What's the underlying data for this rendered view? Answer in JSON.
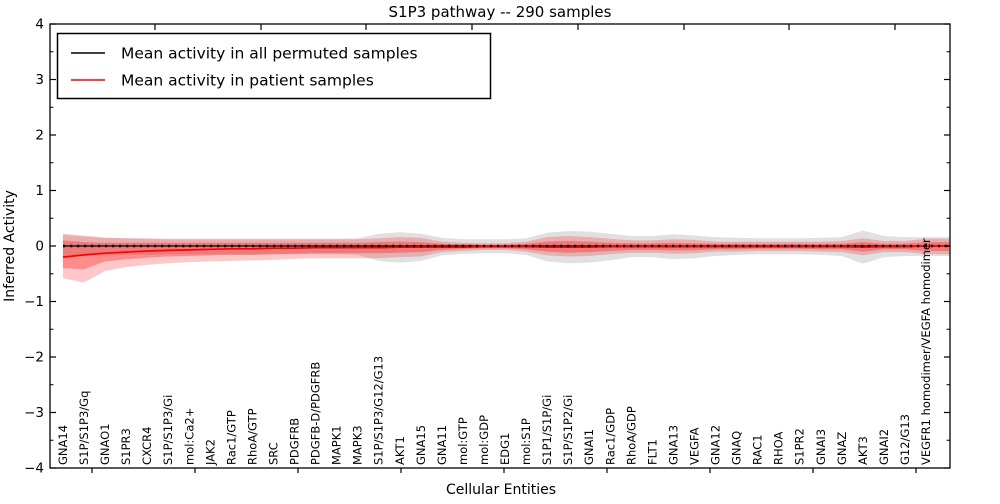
{
  "chart_data": {
    "type": "line",
    "title": "S1P3 pathway -- 290 samples",
    "xlabel": "Cellular Entities",
    "ylabel": "Inferred Activity",
    "ylim": [
      -4,
      4
    ],
    "yticks": [
      4,
      3,
      2,
      1,
      0,
      -1,
      -2,
      -3,
      -4
    ],
    "ytick_labels": [
      "4",
      "3",
      "2",
      "1",
      "0",
      "−1",
      "−2",
      "−3",
      "−4"
    ],
    "grid": false,
    "legend_position": "upper left",
    "categories": [
      "GNA14",
      "S1P/S1P3/Gq",
      "GNAO1",
      "S1PR3",
      "CXCR4",
      "S1P/S1P3/Gi",
      "mol:Ca2+",
      "JAK2",
      "Rac1/GTP",
      "RhoA/GTP",
      "SRC",
      "PDGFRB",
      "PDGFB-D/PDGFRB",
      "MAPK1",
      "MAPK3",
      "S1P/S1P3/G12/G13",
      "AKT1",
      "GNA15",
      "GNA11",
      "mol:GTP",
      "mol:GDP",
      "EDG1",
      "mol:S1P",
      "S1P1/S1P/Gi",
      "S1P/S1P2/Gi",
      "GNAI1",
      "Rac1/GDP",
      "RhoA/GDP",
      "FLT1",
      "GNA13",
      "VEGFA",
      "GNA12",
      "GNAQ",
      "RAC1",
      "RHOA",
      "S1PR2",
      "GNAI3",
      "GNAZ",
      "AKT3",
      "GNAI2",
      "G12/G13",
      "VEGFR1 homodimer/VEGFA homodimer"
    ],
    "series": [
      {
        "name": "Mean activity in all permuted samples",
        "color": "#000000",
        "band_color": "#000000",
        "values": [
          0,
          0,
          0,
          0,
          0,
          0,
          0,
          0,
          0,
          0,
          0,
          0,
          0,
          0,
          0,
          0,
          0,
          0,
          0,
          0,
          0,
          0,
          0,
          0,
          0,
          0,
          0,
          0,
          0,
          0,
          0,
          0,
          0,
          0,
          0,
          0,
          0,
          0,
          0,
          0,
          0,
          0
        ],
        "band_upper": [
          0.2,
          0.17,
          0.15,
          0.14,
          0.14,
          0.13,
          0.13,
          0.13,
          0.13,
          0.13,
          0.13,
          0.13,
          0.13,
          0.13,
          0.14,
          0.22,
          0.25,
          0.22,
          0.15,
          0.12,
          0.12,
          0.12,
          0.14,
          0.24,
          0.27,
          0.26,
          0.22,
          0.18,
          0.18,
          0.21,
          0.19,
          0.16,
          0.15,
          0.14,
          0.14,
          0.14,
          0.15,
          0.16,
          0.28,
          0.18,
          0.16,
          0.16
        ],
        "band_lower": [
          -0.2,
          -0.18,
          -0.17,
          -0.16,
          -0.16,
          -0.15,
          -0.15,
          -0.15,
          -0.15,
          -0.15,
          -0.15,
          -0.15,
          -0.15,
          -0.15,
          -0.16,
          -0.27,
          -0.3,
          -0.27,
          -0.17,
          -0.14,
          -0.13,
          -0.13,
          -0.16,
          -0.28,
          -0.31,
          -0.3,
          -0.26,
          -0.2,
          -0.2,
          -0.24,
          -0.22,
          -0.18,
          -0.16,
          -0.15,
          -0.15,
          -0.15,
          -0.16,
          -0.18,
          -0.32,
          -0.2,
          -0.18,
          -0.18
        ]
      },
      {
        "name": "Mean activity in patient samples",
        "color": "#ff0000",
        "band_color": "#ff0000",
        "values": [
          -0.2,
          -0.16,
          -0.13,
          -0.11,
          -0.09,
          -0.08,
          -0.07,
          -0.06,
          -0.05,
          -0.05,
          -0.04,
          -0.04,
          -0.03,
          -0.03,
          -0.03,
          -0.03,
          -0.02,
          -0.02,
          -0.02,
          -0.02,
          -0.01,
          -0.01,
          -0.01,
          -0.02,
          -0.02,
          -0.02,
          -0.01,
          -0.01,
          -0.01,
          -0.01,
          -0.01,
          -0.01,
          -0.01,
          -0.01,
          -0.01,
          -0.01,
          -0.01,
          -0.01,
          -0.02,
          -0.01,
          -0.01,
          0.0
        ],
        "band_outer_upper": [
          0.22,
          0.19,
          0.15,
          0.14,
          0.13,
          0.12,
          0.12,
          0.12,
          0.12,
          0.12,
          0.12,
          0.12,
          0.12,
          0.12,
          0.12,
          0.14,
          0.16,
          0.15,
          0.08,
          0.06,
          0.05,
          0.05,
          0.08,
          0.16,
          0.18,
          0.16,
          0.13,
          0.1,
          0.1,
          0.12,
          0.11,
          0.08,
          0.08,
          0.08,
          0.08,
          0.08,
          0.08,
          0.09,
          0.14,
          0.09,
          0.09,
          0.13
        ],
        "band_outer_lower": [
          -0.58,
          -0.66,
          -0.45,
          -0.38,
          -0.34,
          -0.31,
          -0.29,
          -0.28,
          -0.27,
          -0.26,
          -0.25,
          -0.23,
          -0.22,
          -0.22,
          -0.22,
          -0.22,
          -0.2,
          -0.19,
          -0.11,
          -0.09,
          -0.07,
          -0.07,
          -0.1,
          -0.17,
          -0.19,
          -0.18,
          -0.15,
          -0.12,
          -0.12,
          -0.14,
          -0.13,
          -0.1,
          -0.1,
          -0.09,
          -0.09,
          -0.09,
          -0.1,
          -0.11,
          -0.17,
          -0.11,
          -0.11,
          -0.15
        ],
        "band_inner_upper": [
          0.1,
          0.07,
          0.06,
          0.06,
          0.06,
          0.06,
          0.06,
          0.06,
          0.06,
          0.06,
          0.06,
          0.06,
          0.06,
          0.06,
          0.06,
          0.07,
          0.08,
          0.07,
          0.04,
          0.03,
          0.02,
          0.02,
          0.04,
          0.08,
          0.09,
          0.08,
          0.06,
          0.05,
          0.05,
          0.06,
          0.05,
          0.04,
          0.04,
          0.04,
          0.04,
          0.04,
          0.04,
          0.04,
          0.07,
          0.04,
          0.04,
          0.07
        ],
        "band_inner_lower": [
          -0.4,
          -0.42,
          -0.28,
          -0.24,
          -0.21,
          -0.19,
          -0.18,
          -0.17,
          -0.16,
          -0.16,
          -0.15,
          -0.14,
          -0.13,
          -0.13,
          -0.13,
          -0.13,
          -0.12,
          -0.11,
          -0.07,
          -0.05,
          -0.04,
          -0.04,
          -0.06,
          -0.1,
          -0.12,
          -0.11,
          -0.09,
          -0.07,
          -0.07,
          -0.08,
          -0.08,
          -0.06,
          -0.06,
          -0.05,
          -0.05,
          -0.05,
          -0.06,
          -0.06,
          -0.1,
          -0.06,
          -0.06,
          -0.09
        ]
      }
    ]
  },
  "colors": {
    "axis": "#000000",
    "permuted_band_fill": "rgba(0,0,0,0.12)",
    "patient_band_outer_fill": "rgba(255,0,0,0.22)",
    "patient_band_inner_fill": "rgba(255,0,0,0.30)"
  }
}
